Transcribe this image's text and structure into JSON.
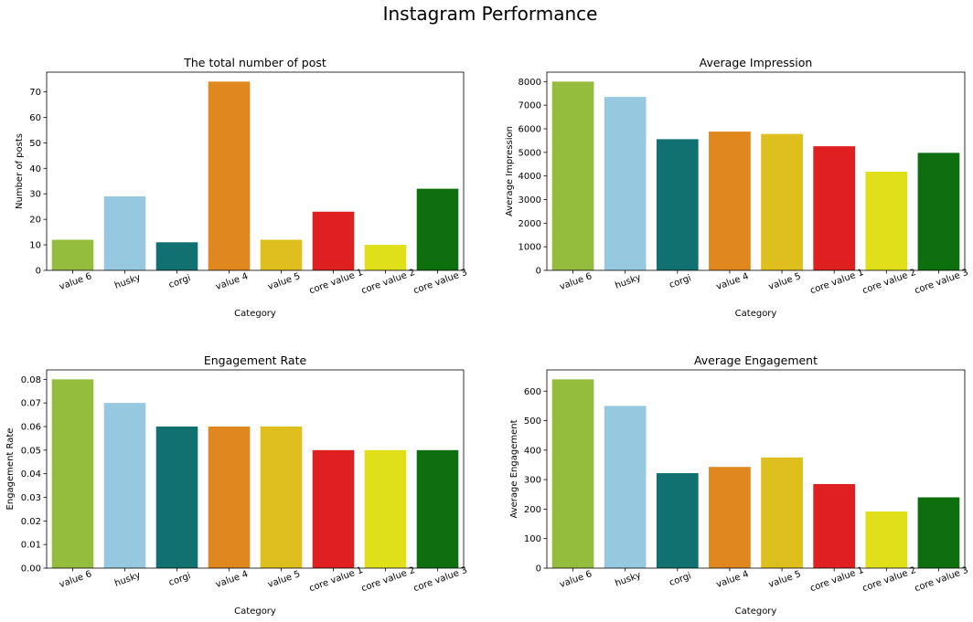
{
  "figure": {
    "title": "Instagram Performance"
  },
  "chart_data": [
    {
      "type": "bar",
      "title": "The total number of post",
      "xlabel": "Category",
      "ylabel": "Number of posts",
      "categories": [
        "value 6",
        "husky",
        "corgi",
        "value 4",
        "value 5",
        "core value 1",
        "core value 2",
        "core value 3"
      ],
      "values": [
        12,
        29,
        11,
        74,
        12,
        23,
        10,
        32
      ],
      "ylim": [
        0,
        77.7
      ],
      "yticks": [
        0,
        10,
        20,
        30,
        40,
        50,
        60,
        70
      ],
      "ytick_labels": [
        "0",
        "10",
        "20",
        "30",
        "40",
        "50",
        "60",
        "70"
      ],
      "grid": false
    },
    {
      "type": "bar",
      "title": "Average Impression",
      "xlabel": "Category",
      "ylabel": "Average Impression",
      "categories": [
        "value 6",
        "husky",
        "corgi",
        "value 4",
        "value 5",
        "core value 1",
        "core value 2",
        "core value 3"
      ],
      "values": [
        8000,
        7350,
        5560,
        5880,
        5780,
        5260,
        4180,
        4980
      ],
      "ylim": [
        0,
        8400
      ],
      "yticks": [
        0,
        1000,
        2000,
        3000,
        4000,
        5000,
        6000,
        7000,
        8000
      ],
      "ytick_labels": [
        "0",
        "1000",
        "2000",
        "3000",
        "4000",
        "5000",
        "6000",
        "7000",
        "8000"
      ],
      "grid": false
    },
    {
      "type": "bar",
      "title": "Engagement Rate",
      "xlabel": "Category",
      "ylabel": "Engagement Rate",
      "categories": [
        "value 6",
        "husky",
        "corgi",
        "value 4",
        "value 5",
        "core value 1",
        "core value 2",
        "core value 3"
      ],
      "values": [
        0.08,
        0.07,
        0.06,
        0.06,
        0.06,
        0.05,
        0.05,
        0.05
      ],
      "ylim": [
        0,
        0.084
      ],
      "yticks": [
        0,
        0.01,
        0.02,
        0.03,
        0.04,
        0.05,
        0.06,
        0.07,
        0.08
      ],
      "ytick_labels": [
        "0.00",
        "0.01",
        "0.02",
        "0.03",
        "0.04",
        "0.05",
        "0.06",
        "0.07",
        "0.08"
      ],
      "grid": false
    },
    {
      "type": "bar",
      "title": "Average Engagement",
      "xlabel": "Category",
      "ylabel": "Average Engagement",
      "categories": [
        "value 6",
        "husky",
        "corgi",
        "value 4",
        "value 5",
        "core value 1",
        "core value 2",
        "core value 3"
      ],
      "values": [
        640,
        550,
        322,
        343,
        375,
        285,
        192,
        240
      ],
      "ylim": [
        0,
        672
      ],
      "yticks": [
        0,
        100,
        200,
        300,
        400,
        500,
        600
      ],
      "ytick_labels": [
        "0",
        "100",
        "200",
        "300",
        "400",
        "500",
        "600"
      ],
      "grid": false
    }
  ],
  "palette": [
    "#94bd3e",
    "#96c9df",
    "#117170",
    "#e0871d",
    "#dfbf1d",
    "#e01f20",
    "#dfdf1a",
    "#0d6f0e"
  ]
}
